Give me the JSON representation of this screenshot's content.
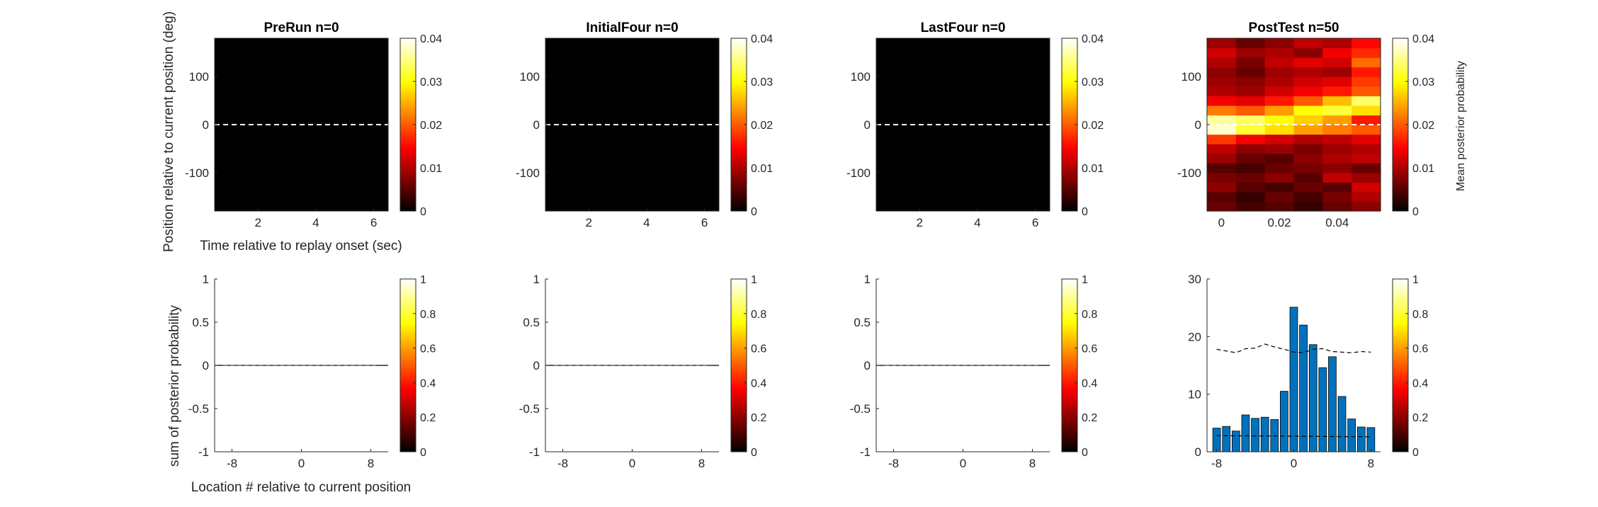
{
  "figure": {
    "top_ylabel": "Position relative to current position (deg)",
    "top_xlabel": "Time relative to replay onset (sec)",
    "bottom_ylabel": "sum of posterior probability",
    "bottom_xlabel": "Location # relative to current position",
    "colorbar_label": "Mean posterior probability"
  },
  "chart_data": [
    {
      "type": "heatmap",
      "id": "prerun-heatmap",
      "title": "PreRun n=0",
      "xlim": [
        0.5,
        6.5
      ],
      "xticks": [
        2,
        4,
        6
      ],
      "ylim": [
        -180,
        180
      ],
      "yticks": [
        -100,
        0,
        100
      ],
      "clim": [
        0,
        0.04
      ],
      "cticks": [
        0,
        0.01,
        0.02,
        0.03,
        0.04
      ],
      "reference_line_y": 0,
      "values": []
    },
    {
      "type": "heatmap",
      "id": "initialfour-heatmap",
      "title": "InitialFour n=0",
      "xlim": [
        0.5,
        6.5
      ],
      "xticks": [
        2,
        4,
        6
      ],
      "ylim": [
        -180,
        180
      ],
      "yticks": [
        -100,
        0,
        100
      ],
      "clim": [
        0,
        0.04
      ],
      "cticks": [
        0,
        0.01,
        0.02,
        0.03,
        0.04
      ],
      "reference_line_y": 0,
      "values": []
    },
    {
      "type": "heatmap",
      "id": "lastfour-heatmap",
      "title": "LastFour n=0",
      "xlim": [
        0.5,
        6.5
      ],
      "xticks": [
        2,
        4,
        6
      ],
      "ylim": [
        -180,
        180
      ],
      "yticks": [
        -100,
        0,
        100
      ],
      "clim": [
        0,
        0.04
      ],
      "cticks": [
        0,
        0.01,
        0.02,
        0.03,
        0.04
      ],
      "reference_line_y": 0,
      "values": []
    },
    {
      "type": "heatmap",
      "id": "posttest-heatmap",
      "title": "PostTest n=50",
      "xlim": [
        -0.005,
        0.055
      ],
      "xticks": [
        0,
        0.02,
        0.04
      ],
      "ylim": [
        -180,
        180
      ],
      "yticks": [
        -100,
        0,
        100
      ],
      "clim": [
        0,
        0.04
      ],
      "cticks": [
        0,
        0.01,
        0.02,
        0.03,
        0.04
      ],
      "reference_line_y": 0,
      "time_bins": [
        0,
        0.01,
        0.02,
        0.03,
        0.04,
        0.05
      ],
      "position_bins": [
        -170,
        -150,
        -130,
        -110,
        -90,
        -70,
        -50,
        -30,
        -10,
        10,
        30,
        50,
        70,
        90,
        110,
        130,
        150,
        170
      ],
      "values": [
        [
          0.006,
          0.004,
          0.005,
          0.003,
          0.006,
          0.008
        ],
        [
          0.005,
          0.003,
          0.006,
          0.004,
          0.007,
          0.01
        ],
        [
          0.008,
          0.005,
          0.004,
          0.006,
          0.005,
          0.012
        ],
        [
          0.007,
          0.006,
          0.008,
          0.005,
          0.011,
          0.009
        ],
        [
          0.005,
          0.004,
          0.006,
          0.007,
          0.008,
          0.006
        ],
        [
          0.009,
          0.006,
          0.005,
          0.008,
          0.01,
          0.011
        ],
        [
          0.011,
          0.008,
          0.009,
          0.007,
          0.009,
          0.01
        ],
        [
          0.018,
          0.014,
          0.012,
          0.01,
          0.011,
          0.013
        ],
        [
          0.038,
          0.032,
          0.028,
          0.024,
          0.022,
          0.02
        ],
        [
          0.036,
          0.034,
          0.03,
          0.027,
          0.024,
          0.016
        ],
        [
          0.022,
          0.02,
          0.024,
          0.03,
          0.032,
          0.028
        ],
        [
          0.014,
          0.013,
          0.016,
          0.02,
          0.026,
          0.034
        ],
        [
          0.01,
          0.009,
          0.012,
          0.014,
          0.016,
          0.02
        ],
        [
          0.009,
          0.008,
          0.01,
          0.012,
          0.013,
          0.018
        ],
        [
          0.008,
          0.006,
          0.009,
          0.01,
          0.009,
          0.016
        ],
        [
          0.01,
          0.007,
          0.011,
          0.013,
          0.012,
          0.021
        ],
        [
          0.012,
          0.009,
          0.01,
          0.008,
          0.014,
          0.017
        ],
        [
          0.009,
          0.006,
          0.008,
          0.011,
          0.01,
          0.015
        ]
      ]
    },
    {
      "type": "bar",
      "id": "prerun-bars",
      "xlim": [
        -10,
        10
      ],
      "xticks": [
        -8,
        0,
        8
      ],
      "ylim": [
        -1,
        1
      ],
      "yticks": [
        -1,
        -0.5,
        0,
        0.5,
        1
      ],
      "clim": [
        0,
        1
      ],
      "cticks": [
        0,
        0.2,
        0.4,
        0.6,
        0.8,
        1
      ],
      "categories": [],
      "values": [],
      "reference_line": [
        0,
        0
      ]
    },
    {
      "type": "bar",
      "id": "initialfour-bars",
      "xlim": [
        -10,
        10
      ],
      "xticks": [
        -8,
        0,
        8
      ],
      "ylim": [
        -1,
        1
      ],
      "yticks": [
        -1,
        -0.5,
        0,
        0.5,
        1
      ],
      "clim": [
        0,
        1
      ],
      "cticks": [
        0,
        0.2,
        0.4,
        0.6,
        0.8,
        1
      ],
      "categories": [],
      "values": [],
      "reference_line": [
        0,
        0
      ]
    },
    {
      "type": "bar",
      "id": "lastfour-bars",
      "xlim": [
        -10,
        10
      ],
      "xticks": [
        -8,
        0,
        8
      ],
      "ylim": [
        -1,
        1
      ],
      "yticks": [
        -1,
        -0.5,
        0,
        0.5,
        1
      ],
      "clim": [
        0,
        1
      ],
      "cticks": [
        0,
        0.2,
        0.4,
        0.6,
        0.8,
        1
      ],
      "categories": [],
      "values": [],
      "reference_line": [
        0,
        0
      ]
    },
    {
      "type": "bar",
      "id": "posttest-bars",
      "xlim": [
        -9,
        9
      ],
      "xticks": [
        -8,
        0,
        8
      ],
      "ylim": [
        0,
        30
      ],
      "yticks": [
        0,
        10,
        20,
        30
      ],
      "clim": [
        0,
        1
      ],
      "cticks": [
        0,
        0.2,
        0.4,
        0.6,
        0.8,
        1
      ],
      "bar_color": "#0072BD",
      "categories": [
        -8,
        -7,
        -6,
        -5,
        -4,
        -3,
        -2,
        -1,
        0,
        1,
        2,
        3,
        4,
        5,
        6,
        7,
        8
      ],
      "values": [
        4.1,
        4.4,
        3.6,
        6.4,
        5.8,
        6.0,
        5.6,
        10.5,
        25.1,
        22.0,
        18.6,
        14.6,
        16.5,
        9.6,
        5.7,
        4.3,
        4.2
      ],
      "upper_line_x": [
        -8,
        -7,
        -6,
        -5,
        -4,
        -3,
        -2,
        -1,
        0,
        1,
        2,
        3,
        4,
        5,
        6,
        7,
        8
      ],
      "upper_line": [
        17.8,
        17.5,
        17.2,
        17.9,
        18.0,
        18.7,
        18.2,
        17.8,
        17.3,
        17.2,
        17.8,
        17.9,
        17.4,
        17.3,
        17.2,
        17.4,
        17.3
      ],
      "lower_line_x": [
        -8,
        8
      ],
      "lower_line": [
        2.8,
        2.6
      ]
    }
  ]
}
